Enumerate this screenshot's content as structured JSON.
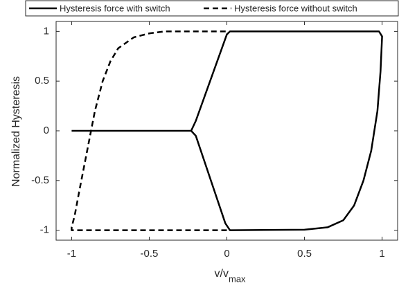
{
  "chart_data": {
    "type": "line",
    "xlabel": {
      "text": "v/v",
      "subscript": "max"
    },
    "ylabel": "Normalized Hysteresis",
    "xlim": [
      -1.1,
      1.1
    ],
    "ylim": [
      -1.1,
      1.1
    ],
    "xticks": [
      -1,
      -0.5,
      0,
      0.5,
      1
    ],
    "yticks": [
      -1,
      -0.5,
      0,
      0.5,
      1
    ],
    "legend": "top",
    "series": [
      {
        "name": "Hysteresis force with switch",
        "color": "#000000",
        "dash": "solid",
        "x": [
          -1,
          -0.23,
          -0.2,
          0,
          0.02,
          0.98,
          1,
          0.99,
          0.97,
          0.93,
          0.88,
          0.82,
          0.75,
          0.65,
          0.5,
          0.02,
          -0.01,
          -0.2,
          -0.23
        ],
        "values": [
          0,
          0,
          0.1,
          0.97,
          1,
          1,
          0.95,
          0.6,
          0.2,
          -0.2,
          -0.5,
          -0.75,
          -0.9,
          -0.97,
          -0.995,
          -1,
          -0.93,
          -0.05,
          0
        ]
      },
      {
        "name": "Hysteresis force without switch",
        "color": "#000000",
        "dash": "dashed",
        "x": [
          0,
          -1,
          -1,
          -0.98,
          -0.95,
          -0.9,
          -0.85,
          -0.8,
          -0.75,
          -0.7,
          -0.6,
          -0.5,
          -0.4,
          0
        ],
        "values": [
          -1,
          -1,
          -0.97,
          -0.85,
          -0.6,
          -0.2,
          0.2,
          0.5,
          0.7,
          0.83,
          0.94,
          0.98,
          1,
          1
        ]
      }
    ]
  }
}
